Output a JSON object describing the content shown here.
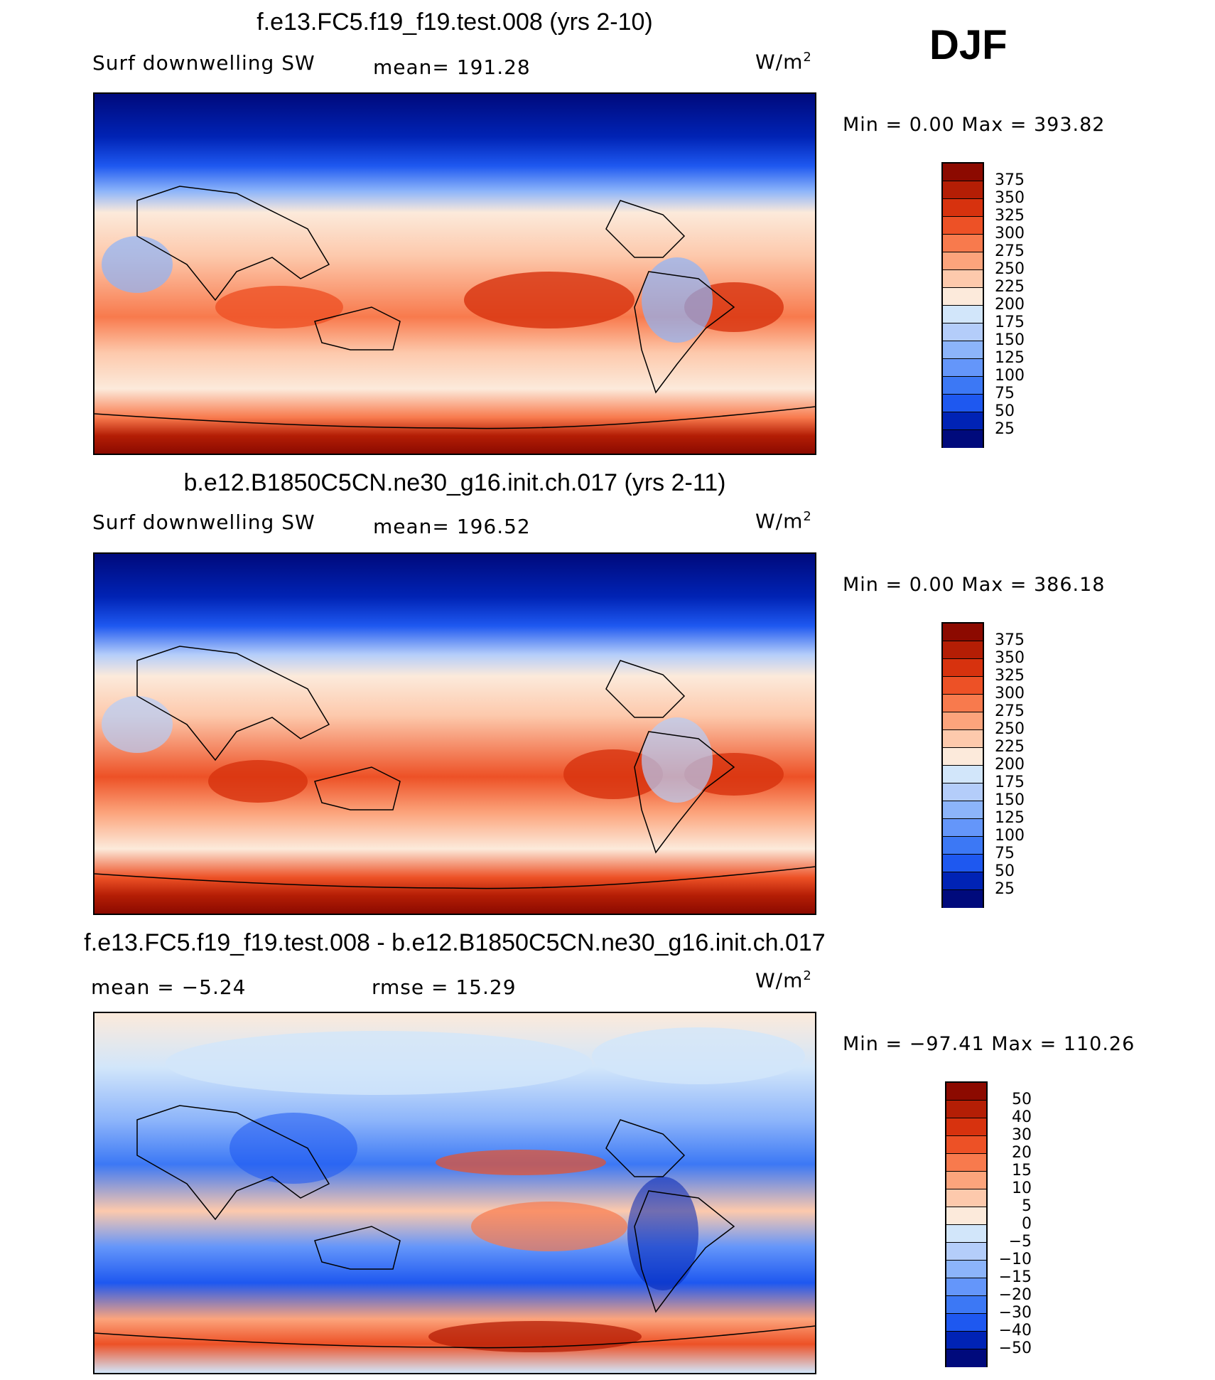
{
  "season": "DJF",
  "colors": {
    "seq": [
      "#000a7c",
      "#0023b5",
      "#0a3cdd",
      "#1e58f0",
      "#3c78f5",
      "#6496fa",
      "#8cb4fa",
      "#b4cdfa",
      "#d2e6fa",
      "#fceadb",
      "#fdc9ac",
      "#fca47c",
      "#f87a4d",
      "#ed5126",
      "#d7320e",
      "#b41e05",
      "#8c0a00"
    ],
    "diff": [
      "#000a7c",
      "#0023b5",
      "#0a3cdd",
      "#1e58f0",
      "#3c78f5",
      "#6496fa",
      "#8cb4fa",
      "#b4cdfa",
      "#d2e6fa",
      "#fceadb",
      "#fdc9ac",
      "#fca47c",
      "#f87a4d",
      "#ed5126",
      "#d7320e",
      "#b41e05",
      "#8c0a00"
    ]
  },
  "panels": [
    {
      "title": "f.e13.FC5.f19_f19.test.008 (yrs 2-10)",
      "left_label": "Surf  downwelling  SW",
      "mean_text": "mean=  191.28",
      "unit": "W/m",
      "unit_sup": "2",
      "minmax": "Min  =      0.00  Max  =  393.82",
      "colorbar_labels": [
        "375",
        "350",
        "325",
        "300",
        "275",
        "250",
        "225",
        "200",
        "175",
        "150",
        "125",
        "100",
        "75",
        "50",
        "25"
      ]
    },
    {
      "title": "b.e12.B1850C5CN.ne30_g16.init.ch.017 (yrs 2-11)",
      "left_label": "Surf  downwelling  SW",
      "mean_text": "mean=  196.52",
      "unit": "W/m",
      "unit_sup": "2",
      "minmax": "Min  =      0.00  Max  =  386.18",
      "colorbar_labels": [
        "375",
        "350",
        "325",
        "300",
        "275",
        "250",
        "225",
        "200",
        "175",
        "150",
        "125",
        "100",
        "75",
        "50",
        "25"
      ]
    },
    {
      "title": "f.e13.FC5.f19_f19.test.008 - b.e12.B1850C5CN.ne30_g16.init.ch.017",
      "left_label": "mean  =     −5.24",
      "mean_text": "rmse  =     15.29",
      "unit": "W/m",
      "unit_sup": "2",
      "minmax": "Min  =  −97.41  Max  =  110.26",
      "colorbar_labels": [
        "50",
        "40",
        "30",
        "20",
        "15",
        "10",
        "5",
        "0",
        "−5",
        "−10",
        "−15",
        "−20",
        "−30",
        "−40",
        "−50"
      ]
    }
  ]
}
